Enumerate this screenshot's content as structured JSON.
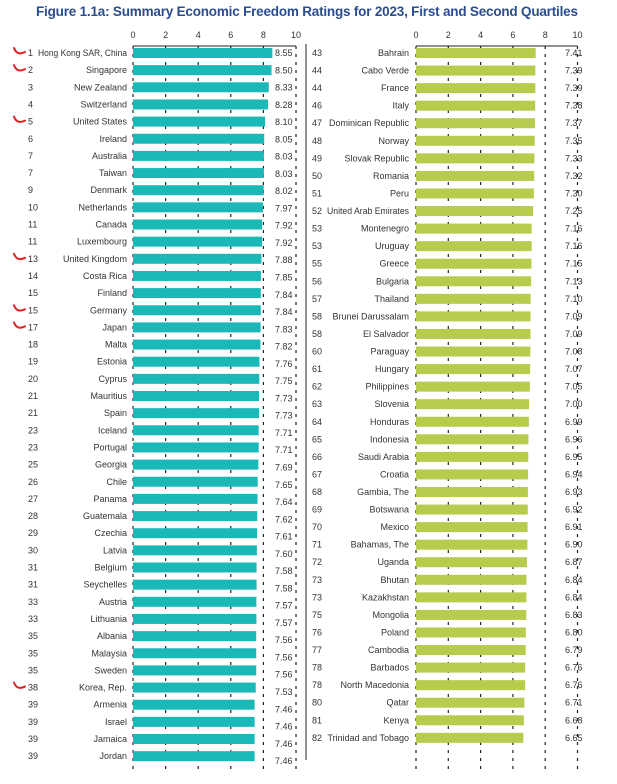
{
  "colors": {
    "first_quartile": "#1bb8b8",
    "second_quartile": "#b5cc4c",
    "title": "#2b4d8e",
    "check_mark": "#e02020"
  },
  "chart_data": [
    {
      "type": "bar",
      "orientation": "horizontal",
      "title": "Figure 1.1a: Summary Economic Freedom Ratings for 2023, First and Second Quartiles",
      "panel": "First Quartile",
      "xlim": [
        0,
        10
      ],
      "xticks": [
        "0",
        "2",
        "4",
        "6",
        "8",
        "10"
      ],
      "grid": "dashed vertical",
      "ranks": [
        "1",
        "2",
        "3",
        "4",
        "5",
        "6",
        "7",
        "7",
        "9",
        "10",
        "11",
        "11",
        "13",
        "14",
        "15",
        "15",
        "17",
        "18",
        "19",
        "20",
        "21",
        "21",
        "23",
        "23",
        "25",
        "26",
        "27",
        "28",
        "29",
        "30",
        "31",
        "31",
        "33",
        "33",
        "35",
        "35",
        "35",
        "38",
        "39",
        "39",
        "39",
        "39"
      ],
      "categories": [
        "Hong Kong SAR, China",
        "Singapore",
        "New Zealand",
        "Switzerland",
        "United States",
        "Ireland",
        "Australia",
        "Taiwan",
        "Denmark",
        "Netherlands",
        "Canada",
        "Luxembourg",
        "United Kingdom",
        "Costa Rica",
        "Finland",
        "Germany",
        "Japan",
        "Malta",
        "Estonia",
        "Cyprus",
        "Mauritius",
        "Spain",
        "Iceland",
        "Portugal",
        "Georgia",
        "Chile",
        "Panama",
        "Guatemala",
        "Czechia",
        "Latvia",
        "Belgium",
        "Seychelles",
        "Austria",
        "Lithuania",
        "Albania",
        "Malaysia",
        "Sweden",
        "Korea, Rep.",
        "Armenia",
        "Israel",
        "Jamaica",
        "Jordan"
      ],
      "values": [
        "8.55",
        "8.50",
        "8.33",
        "8.28",
        "8.10",
        "8.05",
        "8.03",
        "8.03",
        "8.02",
        "7.97",
        "7.92",
        "7.92",
        "7.88",
        "7.85",
        "7.84",
        "7.84",
        "7.83",
        "7.82",
        "7.76",
        "7.75",
        "7.73",
        "7.73",
        "7.71",
        "7.71",
        "7.69",
        "7.65",
        "7.64",
        "7.62",
        "7.61",
        "7.60",
        "7.58",
        "7.58",
        "7.57",
        "7.57",
        "7.56",
        "7.56",
        "7.56",
        "7.53",
        "7.46",
        "7.46",
        "7.46",
        "7.46"
      ],
      "checked_ranks_index": [
        0,
        1,
        4,
        12,
        15,
        16,
        37
      ]
    },
    {
      "type": "bar",
      "orientation": "horizontal",
      "panel": "Second Quartile",
      "xlim": [
        0,
        10
      ],
      "xticks": [
        "0",
        "2",
        "4",
        "6",
        "8",
        "10"
      ],
      "grid": "dashed vertical",
      "ranks": [
        "43",
        "44",
        "44",
        "46",
        "47",
        "48",
        "49",
        "50",
        "51",
        "52",
        "53",
        "53",
        "55",
        "56",
        "57",
        "58",
        "58",
        "60",
        "61",
        "62",
        "63",
        "64",
        "65",
        "66",
        "67",
        "68",
        "69",
        "70",
        "71",
        "72",
        "73",
        "73",
        "75",
        "76",
        "77",
        "78",
        "78",
        "80",
        "81",
        "82"
      ],
      "categories": [
        "Bahrain",
        "Cabo Verde",
        "France",
        "Italy",
        "Dominican Republic",
        "Norway",
        "Slovak Republic",
        "Romania",
        "Peru",
        "United Arab Emirates",
        "Montenegro",
        "Uruguay",
        "Greece",
        "Bulgaria",
        "Thailand",
        "Brunei Darussalam",
        "El Salvador",
        "Paraguay",
        "Hungary",
        "Philippines",
        "Slovenia",
        "Honduras",
        "Indonesia",
        "Saudi Arabia",
        "Croatia",
        "Gambia, The",
        "Botswana",
        "Mexico",
        "Bahamas, The",
        "Uganda",
        "Bhutan",
        "Kazakhstan",
        "Mongolia",
        "Poland",
        "Cambodia",
        "Barbados",
        "North Macedonia",
        "Qatar",
        "Kenya",
        "Trinidad and Tobago"
      ],
      "values": [
        "7.41",
        "7.39",
        "7.39",
        "7.38",
        "7.37",
        "7.35",
        "7.33",
        "7.32",
        "7.30",
        "7.25",
        "7.16",
        "7.16",
        "7.15",
        "7.13",
        "7.10",
        "7.09",
        "7.09",
        "7.08",
        "7.07",
        "7.05",
        "7.00",
        "6.99",
        "6.96",
        "6.95",
        "6.94",
        "6.93",
        "6.92",
        "6.91",
        "6.90",
        "6.87",
        "6.84",
        "6.84",
        "6.83",
        "6.80",
        "6.79",
        "6.76",
        "6.76",
        "6.71",
        "6.68",
        "6.65"
      ]
    }
  ]
}
